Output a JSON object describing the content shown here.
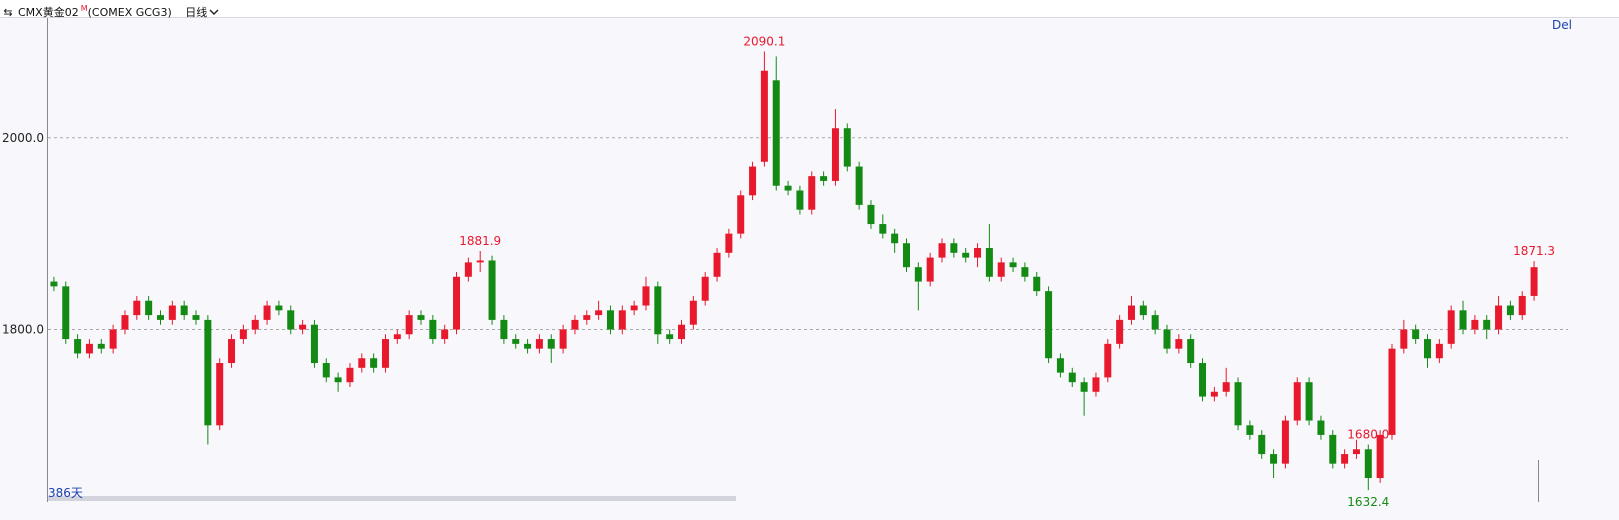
{
  "chart_data": {
    "type": "candlestick",
    "title": "CMX黄金02",
    "title_mark": "M",
    "subtitle": "(COMEX GCG3)",
    "period": "日线",
    "days_label": "386天",
    "corner_label": "Del",
    "ylim": [
      1620,
      2125
    ],
    "yticks": [
      {
        "value": 1800,
        "label": "1800.0"
      },
      {
        "value": 2000,
        "label": "2000.0"
      }
    ],
    "grid": true,
    "up_color": "#e8192c",
    "down_color": "#138a13",
    "annotations": [
      "1680.0",
      "1881.9",
      "2090.1",
      "1632.4",
      "1871.3"
    ],
    "open": [
      1850,
      1845,
      1790,
      1775,
      1785,
      1780,
      1800,
      1815,
      1830,
      1815,
      1810,
      1825,
      1815,
      1810,
      1700,
      1765,
      1790,
      1800,
      1810,
      1825,
      1820,
      1800,
      1805,
      1765,
      1750,
      1745,
      1760,
      1770,
      1760,
      1790,
      1795,
      1815,
      1810,
      1790,
      1800,
      1855,
      1870,
      1872,
      1810,
      1790,
      1785,
      1780,
      1790,
      1780,
      1800,
      1810,
      1815,
      1820,
      1800,
      1820,
      1825,
      1845,
      1795,
      1790,
      1805,
      1830,
      1855,
      1880,
      1900,
      1940,
      1975,
      2060,
      1950,
      1945,
      1925,
      1960,
      1955,
      2010,
      1970,
      1930,
      1910,
      1900,
      1890,
      1865,
      1850,
      1875,
      1890,
      1880,
      1875,
      1885,
      1855,
      1870,
      1865,
      1855,
      1840,
      1770,
      1755,
      1745,
      1735,
      1750,
      1785,
      1810,
      1825,
      1815,
      1800,
      1780,
      1790,
      1765,
      1730,
      1735,
      1745,
      1700,
      1690,
      1670,
      1660,
      1705,
      1745,
      1705,
      1690,
      1660,
      1670,
      1675,
      1645,
      1690,
      1780,
      1800,
      1790,
      1770,
      1785,
      1820,
      1800,
      1810,
      1800,
      1825,
      1815,
      1835
    ],
    "high": [
      1855,
      1850,
      1795,
      1790,
      1790,
      1805,
      1820,
      1835,
      1835,
      1820,
      1830,
      1830,
      1820,
      1815,
      1770,
      1795,
      1805,
      1815,
      1830,
      1830,
      1825,
      1810,
      1810,
      1770,
      1755,
      1765,
      1775,
      1775,
      1795,
      1800,
      1820,
      1820,
      1815,
      1805,
      1860,
      1875,
      1881.9,
      1877,
      1815,
      1795,
      1790,
      1795,
      1795,
      1805,
      1815,
      1820,
      1830,
      1825,
      1825,
      1830,
      1855,
      1850,
      1800,
      1810,
      1835,
      1860,
      1885,
      1905,
      1945,
      1975,
      2090.1,
      2085,
      1955,
      1950,
      1965,
      1965,
      2030,
      2015,
      1975,
      1935,
      1920,
      1905,
      1895,
      1870,
      1880,
      1895,
      1895,
      1885,
      1890,
      1910,
      1875,
      1875,
      1870,
      1860,
      1845,
      1775,
      1760,
      1750,
      1755,
      1790,
      1815,
      1835,
      1830,
      1820,
      1805,
      1795,
      1795,
      1770,
      1740,
      1760,
      1750,
      1705,
      1695,
      1675,
      1710,
      1750,
      1750,
      1710,
      1695,
      1675,
      1685,
      1680,
      1695,
      1785,
      1810,
      1805,
      1795,
      1790,
      1825,
      1830,
      1815,
      1815,
      1835,
      1830,
      1840,
      1871.3
    ],
    "low": [
      1840,
      1785,
      1770,
      1770,
      1775,
      1775,
      1795,
      1810,
      1810,
      1805,
      1805,
      1810,
      1805,
      1680.0,
      1695,
      1760,
      1785,
      1795,
      1805,
      1815,
      1795,
      1795,
      1760,
      1745,
      1735,
      1740,
      1755,
      1755,
      1755,
      1785,
      1790,
      1805,
      1785,
      1785,
      1795,
      1850,
      1860,
      1805,
      1785,
      1780,
      1775,
      1775,
      1765,
      1775,
      1795,
      1805,
      1810,
      1795,
      1795,
      1815,
      1820,
      1785,
      1785,
      1785,
      1800,
      1825,
      1850,
      1875,
      1895,
      1935,
      1970,
      1945,
      1940,
      1920,
      1920,
      1950,
      1950,
      1965,
      1925,
      1905,
      1895,
      1880,
      1860,
      1820,
      1845,
      1870,
      1875,
      1870,
      1865,
      1850,
      1850,
      1860,
      1850,
      1835,
      1765,
      1750,
      1740,
      1710,
      1730,
      1745,
      1780,
      1805,
      1810,
      1795,
      1775,
      1775,
      1760,
      1725,
      1725,
      1730,
      1695,
      1685,
      1665,
      1645,
      1655,
      1700,
      1700,
      1685,
      1655,
      1655,
      1665,
      1632.4,
      1640,
      1685,
      1775,
      1785,
      1760,
      1765,
      1780,
      1795,
      1795,
      1790,
      1795,
      1810,
      1810,
      1830
    ],
    "close": [
      1845,
      1790,
      1775,
      1785,
      1780,
      1800,
      1815,
      1830,
      1815,
      1810,
      1825,
      1815,
      1810,
      1700,
      1765,
      1790,
      1800,
      1810,
      1825,
      1820,
      1800,
      1805,
      1765,
      1750,
      1745,
      1760,
      1770,
      1760,
      1790,
      1795,
      1815,
      1810,
      1790,
      1800,
      1855,
      1870,
      1872,
      1810,
      1790,
      1785,
      1780,
      1790,
      1780,
      1800,
      1810,
      1815,
      1820,
      1800,
      1820,
      1825,
      1845,
      1795,
      1790,
      1805,
      1830,
      1855,
      1880,
      1900,
      1940,
      1970,
      2070,
      1950,
      1945,
      1925,
      1960,
      1955,
      2010,
      1970,
      1930,
      1910,
      1900,
      1890,
      1865,
      1850,
      1875,
      1890,
      1880,
      1875,
      1885,
      1855,
      1870,
      1865,
      1855,
      1840,
      1770,
      1755,
      1745,
      1735,
      1750,
      1785,
      1810,
      1825,
      1815,
      1800,
      1780,
      1790,
      1765,
      1730,
      1735,
      1745,
      1700,
      1690,
      1670,
      1660,
      1705,
      1745,
      1705,
      1690,
      1660,
      1670,
      1675,
      1645,
      1690,
      1780,
      1800,
      1790,
      1770,
      1785,
      1820,
      1800,
      1810,
      1800,
      1825,
      1815,
      1835,
      1865
    ]
  }
}
